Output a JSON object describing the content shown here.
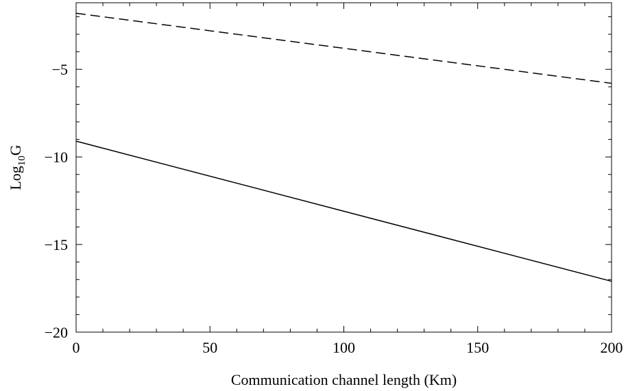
{
  "chart_data": {
    "type": "line",
    "xlabel": "Communication channel length (Km)",
    "ylabel": {
      "base": "Log",
      "subscript": "10",
      "suffix": "G"
    },
    "xlim": [
      0,
      200
    ],
    "ylim": [
      -20,
      -1.2
    ],
    "x_ticks": [
      0,
      50,
      100,
      150,
      200
    ],
    "x_tick_labels": [
      "0",
      "50",
      "100",
      "150",
      "200"
    ],
    "y_ticks": [
      -5,
      -10,
      -15,
      -20
    ],
    "y_tick_labels": [
      "−5",
      "−10",
      "−15",
      "−20"
    ],
    "grid": false,
    "legend": "none",
    "series": [
      {
        "style": "dashed",
        "color": "#000000",
        "x": [
          0,
          200
        ],
        "y": [
          -1.8,
          -5.8
        ]
      },
      {
        "style": "solid",
        "color": "#000000",
        "x": [
          0,
          200
        ],
        "y": [
          -9.1,
          -17.1
        ]
      }
    ]
  }
}
